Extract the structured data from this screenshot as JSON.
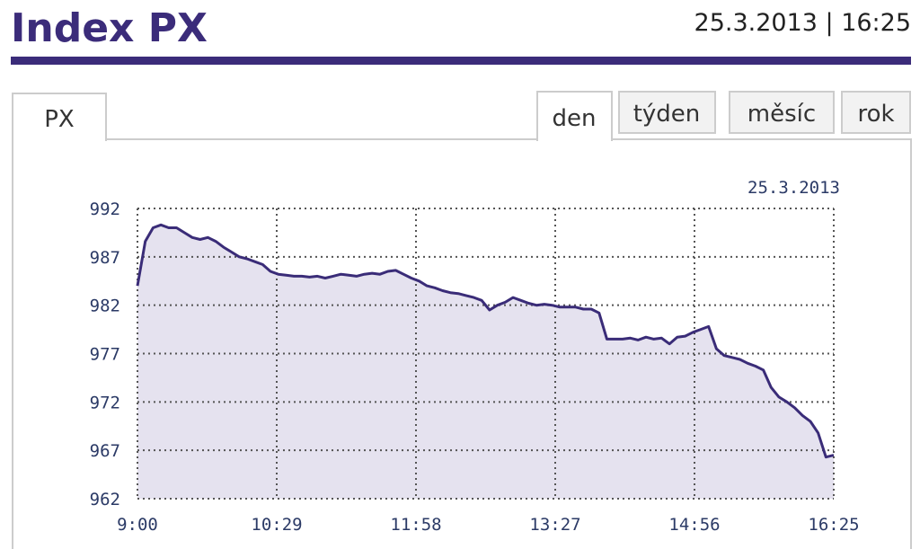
{
  "header": {
    "title": "Index PX",
    "datetime": "25.3.2013 | 16:25"
  },
  "tabs": {
    "instrument": "PX",
    "periods": [
      "den",
      "týden",
      "měsíc",
      "rok"
    ],
    "active": "den"
  },
  "chart_data": {
    "type": "area",
    "subtitle": "25.3.2013",
    "x": [
      "9:00",
      "9:05",
      "9:10",
      "9:15",
      "9:20",
      "9:25",
      "9:30",
      "9:35",
      "9:40",
      "9:45",
      "9:50",
      "9:55",
      "10:00",
      "10:05",
      "10:10",
      "10:15",
      "10:20",
      "10:25",
      "10:30",
      "10:35",
      "10:40",
      "10:45",
      "10:50",
      "10:55",
      "11:00",
      "11:05",
      "11:10",
      "11:15",
      "11:20",
      "11:25",
      "11:30",
      "11:35",
      "11:40",
      "11:45",
      "11:50",
      "11:55",
      "12:00",
      "12:05",
      "12:10",
      "12:15",
      "12:20",
      "12:25",
      "12:30",
      "12:35",
      "12:40",
      "12:45",
      "12:50",
      "12:55",
      "13:00",
      "13:05",
      "13:10",
      "13:15",
      "13:20",
      "13:25",
      "13:30",
      "13:35",
      "13:40",
      "13:45",
      "13:50",
      "13:55",
      "14:00",
      "14:05",
      "14:10",
      "14:15",
      "14:20",
      "14:25",
      "14:30",
      "14:35",
      "14:40",
      "14:45",
      "14:50",
      "14:55",
      "15:00",
      "15:05",
      "15:10",
      "15:15",
      "15:20",
      "15:25",
      "15:30",
      "15:35",
      "15:40",
      "15:45",
      "15:50",
      "15:55",
      "16:00",
      "16:05",
      "16:10",
      "16:15",
      "16:20",
      "16:25"
    ],
    "values": [
      984,
      988.6,
      990,
      990.3,
      990,
      990,
      989.5,
      989,
      988.8,
      989,
      988.6,
      988,
      987.5,
      987,
      986.8,
      986.5,
      986.2,
      985.5,
      985.2,
      985.1,
      985,
      985,
      984.9,
      985,
      984.8,
      985,
      985.2,
      985.1,
      985,
      985.2,
      985.3,
      985.2,
      985.5,
      985.6,
      985.2,
      984.8,
      984.5,
      984,
      983.8,
      983.5,
      983.3,
      983.2,
      983,
      982.8,
      982.5,
      981.5,
      982,
      982.3,
      982.8,
      982.5,
      982.2,
      982,
      982.1,
      982,
      981.8,
      981.8,
      981.8,
      981.6,
      981.6,
      981.2,
      978.5,
      978.5,
      978.5,
      978.6,
      978.4,
      978.7,
      978.5,
      978.6,
      978,
      978.7,
      978.8,
      979.2,
      979.5,
      979.8,
      977.5,
      976.8,
      976.6,
      976.4,
      976,
      975.7,
      975.3,
      973.5,
      972.5,
      972,
      971.4,
      970.6,
      970,
      968.8,
      966.3,
      966.5
    ],
    "color": "#3a2c78",
    "fill": "#e5e2ef",
    "xlim": [
      "9:00",
      "16:25"
    ],
    "xticks": [
      "9:00",
      "10:29",
      "11:58",
      "13:27",
      "14:56",
      "16:25"
    ],
    "ylim": [
      962,
      992
    ],
    "yticks": [
      962,
      967,
      972,
      977,
      982,
      987,
      992
    ],
    "grid": true
  }
}
